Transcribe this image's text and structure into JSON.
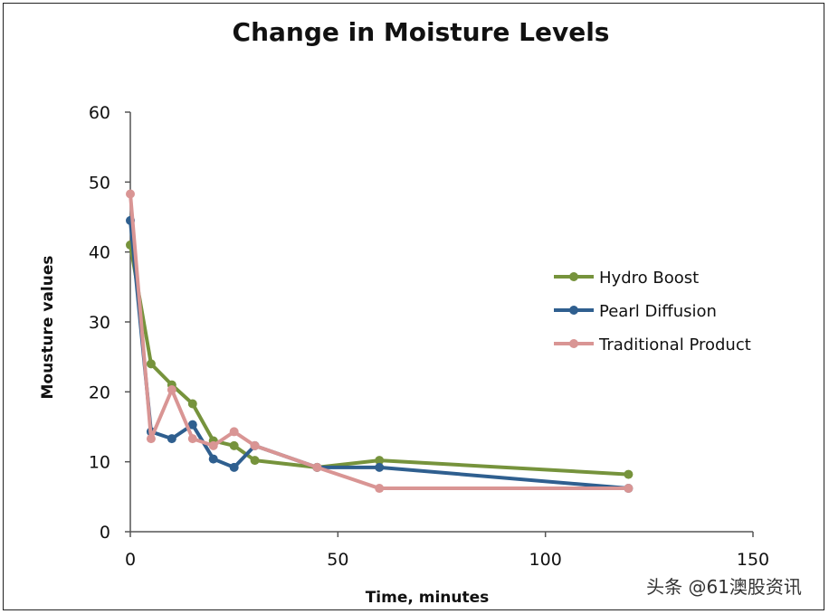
{
  "chart_data": {
    "type": "line",
    "title": "Change in Moisture Levels",
    "xlabel": "Time, minutes",
    "ylabel": "Mousture values",
    "xlim": [
      0,
      150
    ],
    "ylim": [
      0,
      60
    ],
    "xticks": [
      0,
      50,
      100,
      150
    ],
    "yticks": [
      0,
      10,
      20,
      30,
      40,
      50,
      60
    ],
    "grid": false,
    "legend_position": "right",
    "series": [
      {
        "name": "Hydro Boost",
        "color": "#76933C",
        "x": [
          0,
          5,
          10,
          15,
          20,
          25,
          30,
          45,
          60,
          120
        ],
        "y": [
          41,
          24,
          21,
          18.3,
          13,
          12.3,
          10.2,
          9.2,
          10.2,
          8.2
        ]
      },
      {
        "name": "Pearl Diffusion",
        "color": "#2F5F8F",
        "x": [
          0,
          5,
          10,
          15,
          20,
          25,
          30,
          45,
          60,
          120
        ],
        "y": [
          44.5,
          14.3,
          13.3,
          15.3,
          10.4,
          9.2,
          12.3,
          9.2,
          9.2,
          6.2
        ]
      },
      {
        "name": "Traditional Product",
        "color": "#D99594",
        "x": [
          0,
          5,
          10,
          15,
          20,
          25,
          30,
          45,
          60,
          120
        ],
        "y": [
          48.3,
          13.3,
          20.3,
          13.3,
          12.3,
          14.3,
          12.3,
          9.2,
          6.2,
          6.2
        ]
      }
    ]
  },
  "watermark": "头条 @61澳股资讯"
}
